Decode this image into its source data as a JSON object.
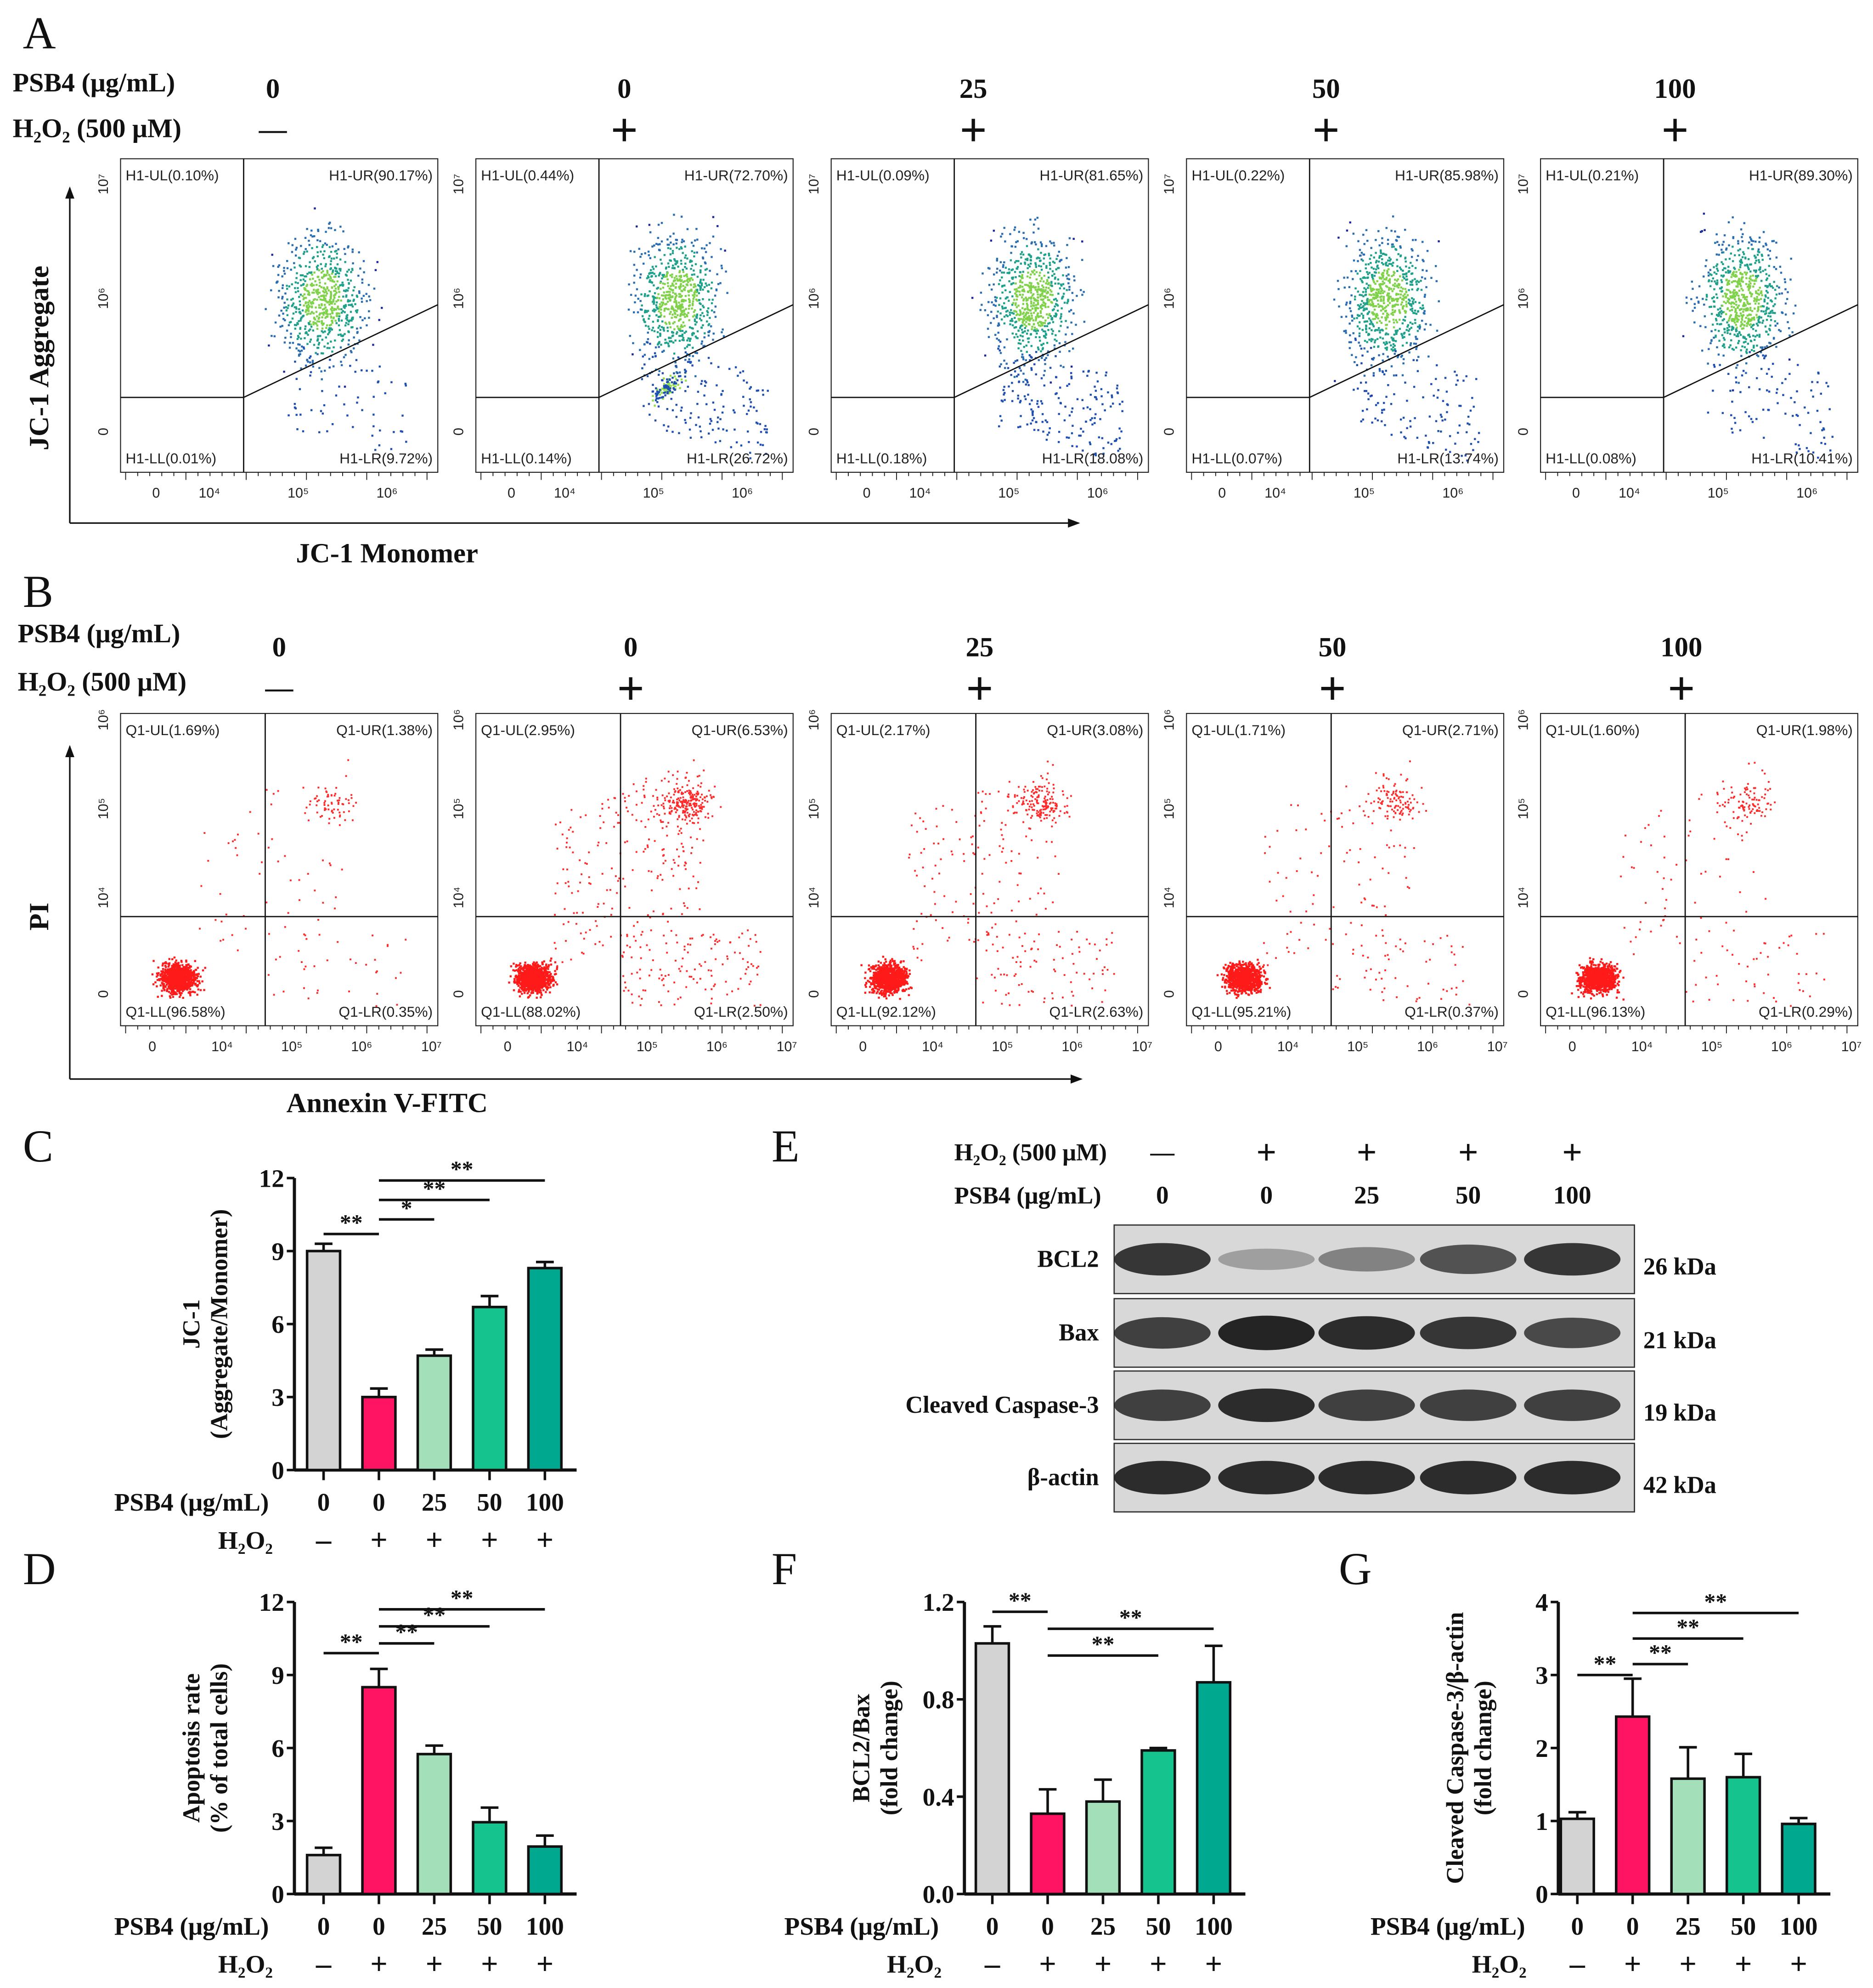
{
  "panels": {
    "A": "A",
    "B": "B",
    "C": "C",
    "D": "D",
    "E": "E",
    "F": "F",
    "G": "G"
  },
  "treatments": {
    "psb4_label": "PSB4 (μg/mL)",
    "h2o2_label_long": "H₂O₂ (500 μM)",
    "h2o2_label_short": "H₂O₂",
    "psb4_values": [
      "0",
      "0",
      "25",
      "50",
      "100"
    ],
    "h2o2_values": [
      "—",
      "+",
      "+",
      "+",
      "+"
    ],
    "h2o2_values_short": [
      "–",
      "+",
      "+",
      "+",
      "+"
    ]
  },
  "flow_A": {
    "ylabel": "JC-1 Aggregate",
    "xlabel": "JC-1 Monomer",
    "xticks": [
      "0",
      "10⁴",
      "10⁵",
      "10⁶"
    ],
    "yticks": [
      "10⁷",
      "10⁶",
      "0"
    ],
    "panels": [
      {
        "UL": "H1-UL(0.10%)",
        "UR": "H1-UR(90.17%)",
        "LL": "H1-LL(0.01%)",
        "LR": "H1-LR(9.72%)"
      },
      {
        "UL": "H1-UL(0.44%)",
        "UR": "H1-UR(72.70%)",
        "LL": "H1-LL(0.14%)",
        "LR": "H1-LR(26.72%)"
      },
      {
        "UL": "H1-UL(0.09%)",
        "UR": "H1-UR(81.65%)",
        "LL": "H1-LL(0.18%)",
        "LR": "H1-LR(18.08%)"
      },
      {
        "UL": "H1-UL(0.22%)",
        "UR": "H1-UR(85.98%)",
        "LL": "H1-LL(0.07%)",
        "LR": "H1-LR(13.74%)"
      },
      {
        "UL": "H1-UL(0.21%)",
        "UR": "H1-UR(89.30%)",
        "LL": "H1-LL(0.08%)",
        "LR": "H1-LR(10.41%)"
      }
    ]
  },
  "flow_B": {
    "ylabel": "PI",
    "xlabel": "Annexin V-FITC",
    "xticks": [
      "0",
      "10⁴",
      "10⁵",
      "10⁶",
      "10⁷"
    ],
    "yticks": [
      "10⁶",
      "10⁵",
      "10⁴",
      "0"
    ],
    "panels": [
      {
        "UL": "Q1-UL(1.69%)",
        "UR": "Q1-UR(1.38%)",
        "LL": "Q1-LL(96.58%)",
        "LR": "Q1-LR(0.35%)"
      },
      {
        "UL": "Q1-UL(2.95%)",
        "UR": "Q1-UR(6.53%)",
        "LL": "Q1-LL(88.02%)",
        "LR": "Q1-LR(2.50%)"
      },
      {
        "UL": "Q1-UL(2.17%)",
        "UR": "Q1-UR(3.08%)",
        "LL": "Q1-LL(92.12%)",
        "LR": "Q1-LR(2.63%)"
      },
      {
        "UL": "Q1-UL(1.71%)",
        "UR": "Q1-UR(2.71%)",
        "LL": "Q1-LL(95.21%)",
        "LR": "Q1-LR(0.37%)"
      },
      {
        "UL": "Q1-UL(1.60%)",
        "UR": "Q1-UR(1.98%)",
        "LL": "Q1-LL(96.13%)",
        "LR": "Q1-LR(0.29%)"
      }
    ]
  },
  "western": {
    "h2o2_label": "H₂O₂ (500 μM)",
    "psb4_label": "PSB4 (μg/mL)",
    "bands": [
      {
        "name": "BCL2",
        "kda": "26 kDa",
        "intensity": [
          0.85,
          0.3,
          0.45,
          0.7,
          0.85
        ]
      },
      {
        "name": "Bax",
        "kda": "21 kDa",
        "intensity": [
          0.8,
          0.95,
          0.9,
          0.85,
          0.75
        ]
      },
      {
        "name": "Cleaved Caspase-3",
        "kda": "19 kDa",
        "intensity": [
          0.8,
          0.9,
          0.8,
          0.8,
          0.8
        ]
      },
      {
        "name": "β-actin",
        "kda": "42 kDa",
        "intensity": [
          0.9,
          0.9,
          0.9,
          0.9,
          0.9
        ]
      }
    ]
  },
  "colors": [
    "#d3d3d3",
    "#ff1464",
    "#a3dfb8",
    "#14c38e",
    "#00a890"
  ],
  "chart_data": [
    {
      "id": "C",
      "type": "bar",
      "categories": [
        "0",
        "0",
        "25",
        "50",
        "100"
      ],
      "values": [
        9.0,
        3.0,
        4.7,
        6.7,
        8.3
      ],
      "errors": [
        0.3,
        0.35,
        0.25,
        0.45,
        0.25
      ],
      "ylabel": "JC-1",
      "ylabel2": "(Aggregate/Monomer)",
      "ylim": [
        0,
        12
      ],
      "yticks": [
        "0",
        "3",
        "6",
        "9",
        "12"
      ],
      "tickvals": [
        0,
        3,
        6,
        9,
        12
      ],
      "sig": [
        {
          "from": 0,
          "to": 1,
          "label": "**",
          "level": 9.7
        },
        {
          "from": 1,
          "to": 2,
          "label": "*",
          "level": 10.3
        },
        {
          "from": 1,
          "to": 3,
          "label": "**",
          "level": 11.1
        },
        {
          "from": 1,
          "to": 4,
          "label": "**",
          "level": 11.9
        }
      ]
    },
    {
      "id": "D",
      "type": "bar",
      "categories": [
        "0",
        "0",
        "25",
        "50",
        "100"
      ],
      "values": [
        1.6,
        8.5,
        5.75,
        2.95,
        1.95
      ],
      "errors": [
        0.3,
        0.75,
        0.35,
        0.6,
        0.45
      ],
      "ylabel": "Apoptosis rate",
      "ylabel2": "(% of total cells)",
      "ylim": [
        0,
        12
      ],
      "yticks": [
        "0",
        "3",
        "6",
        "9",
        "12"
      ],
      "tickvals": [
        0,
        3,
        6,
        9,
        12
      ],
      "sig": [
        {
          "from": 0,
          "to": 1,
          "label": "**",
          "level": 9.9
        },
        {
          "from": 1,
          "to": 2,
          "label": "**",
          "level": 10.3
        },
        {
          "from": 1,
          "to": 3,
          "label": "**",
          "level": 11.0
        },
        {
          "from": 1,
          "to": 4,
          "label": "**",
          "level": 11.7
        }
      ]
    },
    {
      "id": "F",
      "type": "bar",
      "categories": [
        "0",
        "0",
        "25",
        "50",
        "100"
      ],
      "values": [
        1.03,
        0.33,
        0.38,
        0.59,
        0.87
      ],
      "errors": [
        0.07,
        0.1,
        0.09,
        0.01,
        0.15
      ],
      "ylabel": "BCL2/Bax",
      "ylabel2": "(fold change)",
      "ylim": [
        0,
        1.2
      ],
      "yticks": [
        "0.0",
        "0.4",
        "0.8",
        "1.2"
      ],
      "tickvals": [
        0,
        0.4,
        0.8,
        1.2
      ],
      "sig": [
        {
          "from": 0,
          "to": 1,
          "label": "**",
          "level": 1.16
        },
        {
          "from": 1,
          "to": 3,
          "label": "**",
          "level": 0.98
        },
        {
          "from": 1,
          "to": 4,
          "label": "**",
          "level": 1.09
        }
      ]
    },
    {
      "id": "G",
      "type": "bar",
      "categories": [
        "0",
        "0",
        "25",
        "50",
        "100"
      ],
      "values": [
        1.03,
        2.43,
        1.58,
        1.6,
        0.96
      ],
      "errors": [
        0.09,
        0.52,
        0.43,
        0.32,
        0.08
      ],
      "ylabel": "Cleaved Caspase-3/β-actin",
      "ylabel2": "(fold change)",
      "ylim": [
        0,
        4
      ],
      "yticks": [
        "0",
        "1",
        "2",
        "3",
        "4"
      ],
      "tickvals": [
        0,
        1,
        2,
        3,
        4
      ],
      "sig": [
        {
          "from": 0,
          "to": 1,
          "label": "**",
          "level": 3.0
        },
        {
          "from": 1,
          "to": 2,
          "label": "**",
          "level": 3.15
        },
        {
          "from": 1,
          "to": 3,
          "label": "**",
          "level": 3.5
        },
        {
          "from": 1,
          "to": 4,
          "label": "**",
          "level": 3.85
        }
      ]
    }
  ]
}
